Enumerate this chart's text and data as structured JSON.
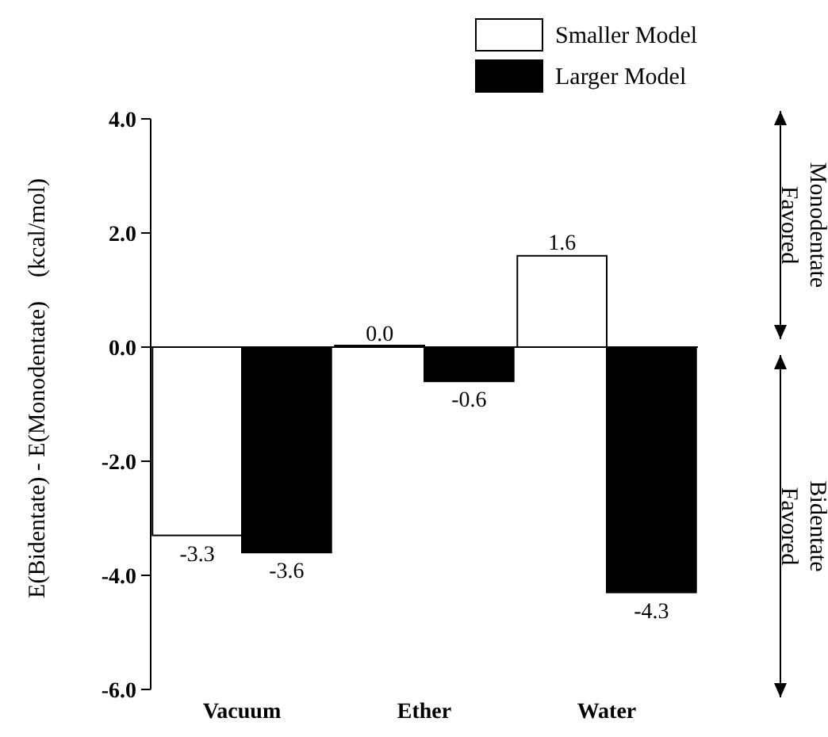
{
  "chart_data": {
    "type": "bar",
    "ylabel": "E(Bidentate) - E(Monodentate)    (kcal/mol)",
    "categories": [
      "Vacuum",
      "Ether",
      "Water"
    ],
    "series": [
      {
        "name": "Smaller Model",
        "color": "#ffffff",
        "values": [
          -3.3,
          0.0,
          1.6
        ],
        "value_labels": [
          "-3.3",
          "0.0",
          "1.6"
        ]
      },
      {
        "name": "Larger Model",
        "color": "#000000",
        "values": [
          -3.6,
          -0.6,
          -4.3
        ],
        "value_labels": [
          "-3.6",
          "-0.6",
          "-4.3"
        ]
      }
    ],
    "ylim": [
      -6,
      4
    ],
    "yticks": [
      {
        "value": -6,
        "label": "-6.0"
      },
      {
        "value": -4,
        "label": "-4.0"
      },
      {
        "value": -2,
        "label": "-2.0"
      },
      {
        "value": 0,
        "label": "0.0"
      },
      {
        "value": 2,
        "label": "2.0"
      },
      {
        "value": 4,
        "label": "4.0"
      }
    ],
    "legend": "top right",
    "annotations": [
      "Monodentate Favored",
      "Bidentate Favored"
    ]
  }
}
